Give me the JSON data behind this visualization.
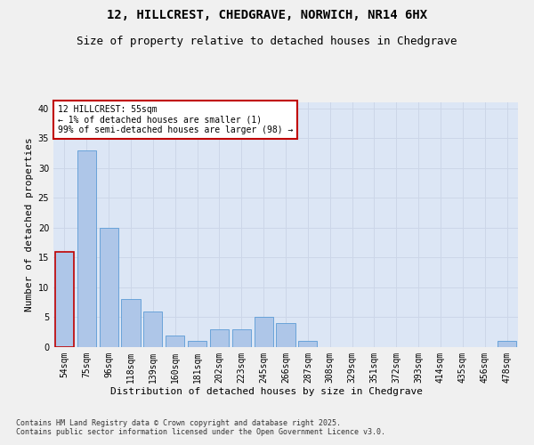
{
  "title_line1": "12, HILLCREST, CHEDGRAVE, NORWICH, NR14 6HX",
  "title_line2": "Size of property relative to detached houses in Chedgrave",
  "xlabel": "Distribution of detached houses by size in Chedgrave",
  "ylabel": "Number of detached properties",
  "categories": [
    "54sqm",
    "75sqm",
    "96sqm",
    "118sqm",
    "139sqm",
    "160sqm",
    "181sqm",
    "202sqm",
    "223sqm",
    "245sqm",
    "266sqm",
    "287sqm",
    "308sqm",
    "329sqm",
    "351sqm",
    "372sqm",
    "393sqm",
    "414sqm",
    "435sqm",
    "456sqm",
    "478sqm"
  ],
  "values": [
    16,
    33,
    20,
    8,
    6,
    2,
    1,
    3,
    3,
    5,
    4,
    1,
    0,
    0,
    0,
    0,
    0,
    0,
    0,
    0,
    1
  ],
  "bar_color": "#aec6e8",
  "bar_edge_color": "#5b9bd5",
  "highlight_edge_color": "#c00000",
  "annotation_text": "12 HILLCREST: 55sqm\n← 1% of detached houses are smaller (1)\n99% of semi-detached houses are larger (98) →",
  "annotation_box_color": "#ffffff",
  "annotation_box_edge_color": "#c00000",
  "ylim": [
    0,
    41
  ],
  "yticks": [
    0,
    5,
    10,
    15,
    20,
    25,
    30,
    35,
    40
  ],
  "grid_color": "#ccd6e8",
  "background_color": "#dce6f5",
  "fig_background_color": "#f0f0f0",
  "footnote": "Contains HM Land Registry data © Crown copyright and database right 2025.\nContains public sector information licensed under the Open Government Licence v3.0.",
  "title_fontsize": 10,
  "subtitle_fontsize": 9,
  "axis_label_fontsize": 8,
  "tick_fontsize": 7,
  "annotation_fontsize": 7,
  "footnote_fontsize": 6
}
